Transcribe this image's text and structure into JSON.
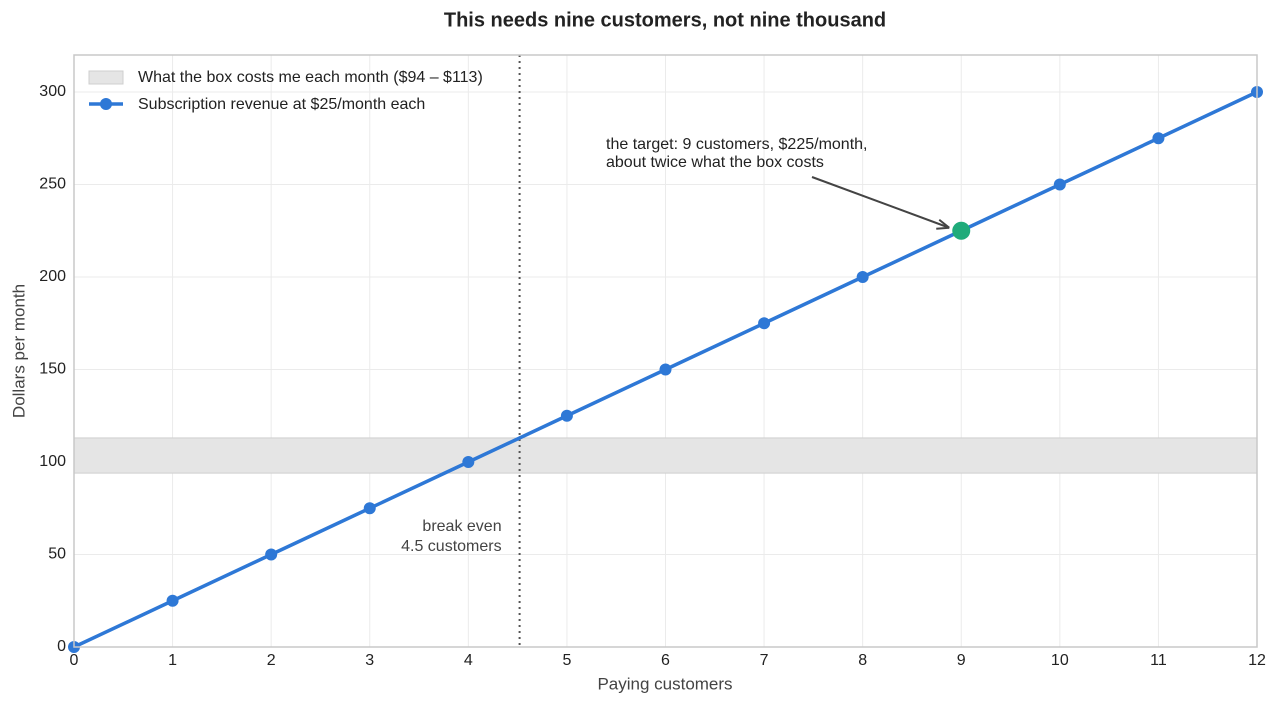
{
  "chart_data": {
    "type": "line",
    "title": "This needs nine customers, not nine thousand",
    "x_label": "Paying customers",
    "y_label": "Dollars per month",
    "x": [
      0,
      1,
      2,
      3,
      4,
      5,
      6,
      7,
      8,
      9,
      10,
      11,
      12
    ],
    "series": [
      {
        "name": "Subscription revenue at $25/month each",
        "color": "#2e78d6",
        "values": [
          0,
          25,
          50,
          75,
          100,
          125,
          150,
          175,
          200,
          225,
          250,
          275,
          300
        ]
      }
    ],
    "xlim": [
      0,
      12
    ],
    "ylim": [
      0,
      320
    ],
    "xticks": [
      0,
      1,
      2,
      3,
      4,
      5,
      6,
      7,
      8,
      9,
      10,
      11,
      12
    ],
    "yticks": [
      0,
      50,
      100,
      150,
      200,
      250,
      300
    ],
    "grid": true,
    "legend": "upper left",
    "band": {
      "label": "What the box costs me each month ($94 – $113)",
      "range": [
        94,
        113
      ],
      "color": "#e5e5e5"
    },
    "vline": {
      "x": 4.52,
      "label": [
        "break even",
        "4.5 customers"
      ],
      "color": "#555555"
    },
    "highlight": {
      "x": 9,
      "y": 225,
      "color": "#1fab7a",
      "label": [
        "the target: 9 customers, $225/month,",
        "about twice what the box costs"
      ]
    }
  }
}
